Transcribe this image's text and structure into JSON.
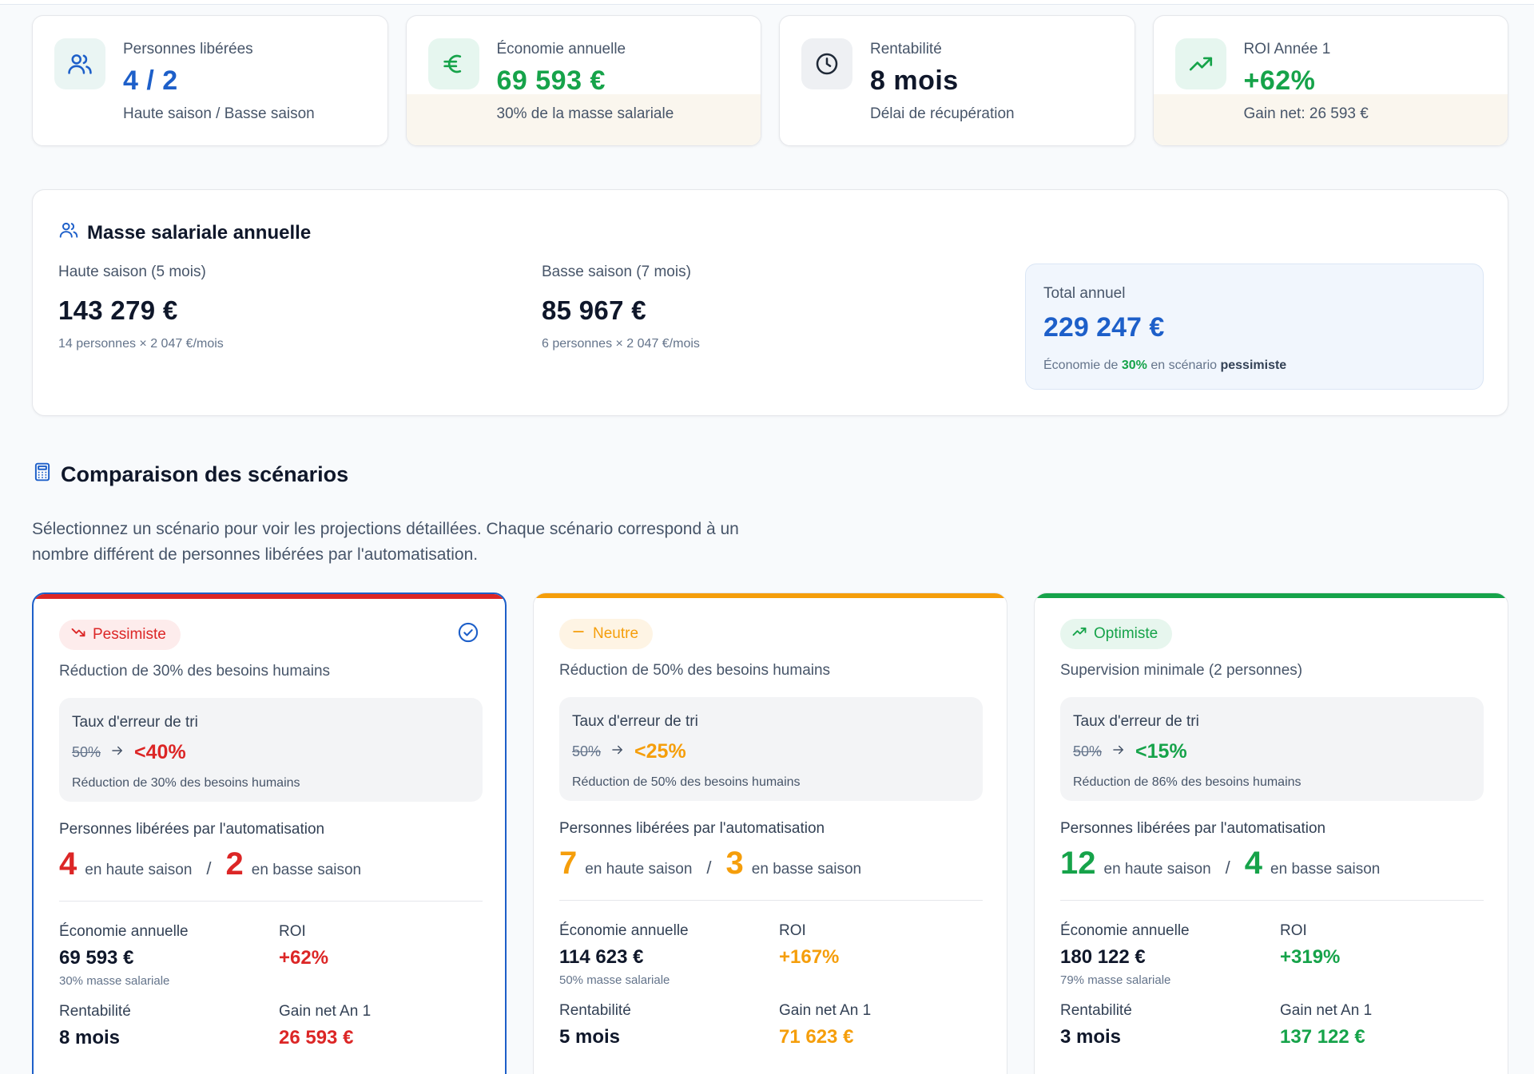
{
  "kpis": [
    {
      "label": "Personnes libérées",
      "value": "4 / 2",
      "sub": "Haute saison / Basse saison",
      "icon": "users-icon",
      "color": "#1d5fc9"
    },
    {
      "label": "Économie annuelle",
      "value": "69 593 €",
      "sub": "30% de la masse salariale",
      "icon": "euro-icon",
      "color": "#16a34a"
    },
    {
      "label": "Rentabilité",
      "value": "8 mois",
      "sub": "Délai de récupération",
      "icon": "clock-icon",
      "color": "#0f172a"
    },
    {
      "label": "ROI Année 1",
      "value": "+62%",
      "sub": "Gain net: 26 593 €",
      "icon": "trending-up-icon",
      "color": "#16a34a"
    }
  ],
  "masse": {
    "title": "Masse salariale annuelle",
    "haute": {
      "label": "Haute saison (5 mois)",
      "value": "143 279 €",
      "note": "14 personnes × 2 047 €/mois"
    },
    "basse": {
      "label": "Basse saison (7 mois)",
      "value": "85 967 €",
      "note": "6 personnes × 2 047 €/mois"
    },
    "total": {
      "label": "Total annuel",
      "value": "229 247 €",
      "note_prefix": "Économie de ",
      "note_pct": "30%",
      "note_mid": " en scénario ",
      "note_scenario": "pessimiste"
    }
  },
  "comparaison": {
    "title": "Comparaison des scénarios",
    "description": "Sélectionnez un scénario pour voir les projections détaillées. Chaque scénario correspond à un nombre différent de personnes libérées par l'automatisation."
  },
  "labels": {
    "error_title": "Taux d'erreur de tri",
    "persons_title": "Personnes libérées par l'automatisation",
    "haute": "en haute saison",
    "basse": "en basse saison",
    "economie": "Économie annuelle",
    "roi": "ROI",
    "rentabilite": "Rentabilité",
    "gain": "Gain net An 1"
  },
  "scenarios": [
    {
      "name": "Pessimiste",
      "color": "#dc2626",
      "desc": "Réduction de 30% des besoins humains",
      "err_old": "50%",
      "err_new": "<40%",
      "err_note": "Réduction de 30% des besoins humains",
      "haute": "4",
      "basse": "2",
      "economie": "69 593 €",
      "economie_note": "30% masse salariale",
      "roi": "+62%",
      "rentabilite": "8 mois",
      "gain": "26 593 €",
      "selected": true
    },
    {
      "name": "Neutre",
      "color": "#f59e0b",
      "desc": "Réduction de 50% des besoins humains",
      "err_old": "50%",
      "err_new": "<25%",
      "err_note": "Réduction de 50% des besoins humains",
      "haute": "7",
      "basse": "3",
      "economie": "114 623 €",
      "economie_note": "50% masse salariale",
      "roi": "+167%",
      "rentabilite": "5 mois",
      "gain": "71 623 €",
      "selected": false
    },
    {
      "name": "Optimiste",
      "color": "#16a34a",
      "desc": "Supervision minimale (2 personnes)",
      "err_old": "50%",
      "err_new": "<15%",
      "err_note": "Réduction de 86% des besoins humains",
      "haute": "12",
      "basse": "4",
      "economie": "180 122 €",
      "economie_note": "79% masse salariale",
      "roi": "+319%",
      "rentabilite": "3 mois",
      "gain": "137 122 €",
      "selected": false
    }
  ]
}
